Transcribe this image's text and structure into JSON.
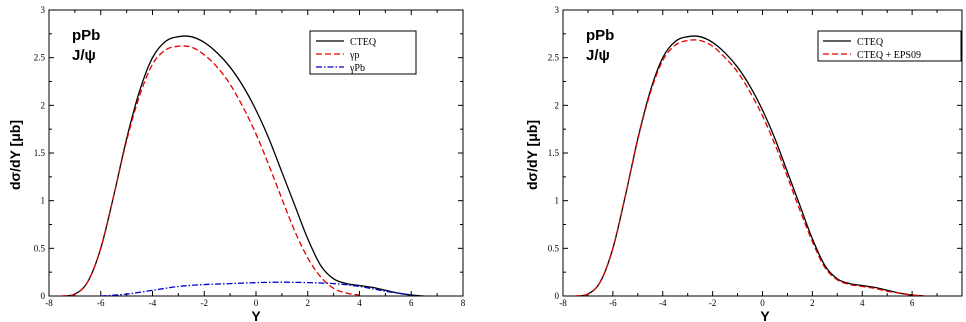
{
  "chart_data": [
    {
      "type": "line",
      "panel_label": [
        "pPb",
        "J/ψ"
      ],
      "xlabel": "Y",
      "ylabel": "dσ/dY [μb]",
      "xlim": [
        -8,
        8
      ],
      "ylim": [
        0,
        3
      ],
      "xticks": [
        -8,
        -6,
        -4,
        -2,
        0,
        2,
        4,
        6,
        8
      ],
      "yticks": [
        0,
        0.5,
        1,
        1.5,
        2,
        2.5,
        3
      ],
      "grid": false,
      "legend_position": "top-right",
      "series": [
        {
          "name": "CTEQ",
          "color": "#000000",
          "dash": "solid",
          "x": [
            -7.5,
            -7.0,
            -6.5,
            -6.0,
            -5.5,
            -5.0,
            -4.5,
            -4.0,
            -3.5,
            -3.0,
            -2.5,
            -2.0,
            -1.5,
            -1.0,
            -0.5,
            0.0,
            0.5,
            1.0,
            1.5,
            2.0,
            2.5,
            3.0,
            3.5,
            4.0,
            4.5,
            5.0,
            5.5,
            6.0,
            6.5
          ],
          "y": [
            0.0,
            0.02,
            0.15,
            0.5,
            1.05,
            1.65,
            2.15,
            2.5,
            2.67,
            2.72,
            2.72,
            2.66,
            2.55,
            2.4,
            2.2,
            1.95,
            1.65,
            1.3,
            0.95,
            0.6,
            0.32,
            0.18,
            0.13,
            0.11,
            0.09,
            0.06,
            0.03,
            0.01,
            0.0
          ]
        },
        {
          "name": "γp",
          "color": "#e00000",
          "dash": "dashed",
          "x": [
            -7.5,
            -7.0,
            -6.5,
            -6.0,
            -5.5,
            -5.0,
            -4.5,
            -4.0,
            -3.5,
            -3.0,
            -2.5,
            -2.0,
            -1.5,
            -1.0,
            -0.5,
            0.0,
            0.5,
            1.0,
            1.5,
            2.0,
            2.5,
            3.0,
            3.5,
            4.0
          ],
          "y": [
            0.0,
            0.02,
            0.15,
            0.5,
            1.05,
            1.63,
            2.1,
            2.43,
            2.58,
            2.62,
            2.61,
            2.53,
            2.4,
            2.22,
            1.98,
            1.7,
            1.37,
            1.02,
            0.68,
            0.4,
            0.2,
            0.08,
            0.03,
            0.01
          ]
        },
        {
          "name": "γPb",
          "color": "#0000cc",
          "dash": "dashdot",
          "x": [
            -6.0,
            -5.0,
            -4.0,
            -3.0,
            -2.0,
            -1.0,
            0.0,
            1.0,
            2.0,
            3.0,
            4.0,
            5.0,
            6.0
          ],
          "y": [
            0.0,
            0.02,
            0.06,
            0.1,
            0.12,
            0.13,
            0.14,
            0.145,
            0.14,
            0.13,
            0.1,
            0.05,
            0.01
          ]
        }
      ]
    },
    {
      "type": "line",
      "panel_label": [
        "pPb",
        "J/ψ"
      ],
      "xlabel": "Y",
      "ylabel": "dσ/dY [μb]",
      "xlim": [
        -8,
        8
      ],
      "ylim": [
        0,
        3
      ],
      "xticks": [
        -8,
        -6,
        -4,
        -2,
        0,
        2,
        4,
        6
      ],
      "yticks": [
        0,
        0.5,
        1,
        1.5,
        2,
        2.5,
        3
      ],
      "grid": false,
      "legend_position": "top-right",
      "series": [
        {
          "name": "CTEQ",
          "color": "#000000",
          "dash": "solid",
          "x": [
            -7.5,
            -7.0,
            -6.5,
            -6.0,
            -5.5,
            -5.0,
            -4.5,
            -4.0,
            -3.5,
            -3.0,
            -2.5,
            -2.0,
            -1.5,
            -1.0,
            -0.5,
            0.0,
            0.5,
            1.0,
            1.5,
            2.0,
            2.5,
            3.0,
            3.5,
            4.0,
            4.5,
            5.0,
            5.5,
            6.0,
            6.5
          ],
          "y": [
            0.0,
            0.02,
            0.15,
            0.5,
            1.05,
            1.65,
            2.15,
            2.5,
            2.67,
            2.72,
            2.72,
            2.66,
            2.55,
            2.4,
            2.2,
            1.95,
            1.65,
            1.3,
            0.95,
            0.6,
            0.32,
            0.18,
            0.13,
            0.11,
            0.09,
            0.06,
            0.03,
            0.01,
            0.0
          ]
        },
        {
          "name": "CTEQ + EPS09",
          "color": "#e00000",
          "dash": "dashed",
          "x": [
            -7.5,
            -7.0,
            -6.5,
            -6.0,
            -5.5,
            -5.0,
            -4.5,
            -4.0,
            -3.5,
            -3.0,
            -2.5,
            -2.0,
            -1.5,
            -1.0,
            -0.5,
            0.0,
            0.5,
            1.0,
            1.5,
            2.0,
            2.5,
            3.0,
            3.5,
            4.0,
            4.5,
            5.0,
            5.5,
            6.0,
            6.5
          ],
          "y": [
            0.0,
            0.02,
            0.15,
            0.5,
            1.05,
            1.64,
            2.13,
            2.47,
            2.63,
            2.68,
            2.68,
            2.62,
            2.5,
            2.35,
            2.14,
            1.89,
            1.59,
            1.25,
            0.9,
            0.57,
            0.3,
            0.17,
            0.12,
            0.1,
            0.08,
            0.05,
            0.03,
            0.01,
            0.0
          ]
        }
      ]
    }
  ]
}
